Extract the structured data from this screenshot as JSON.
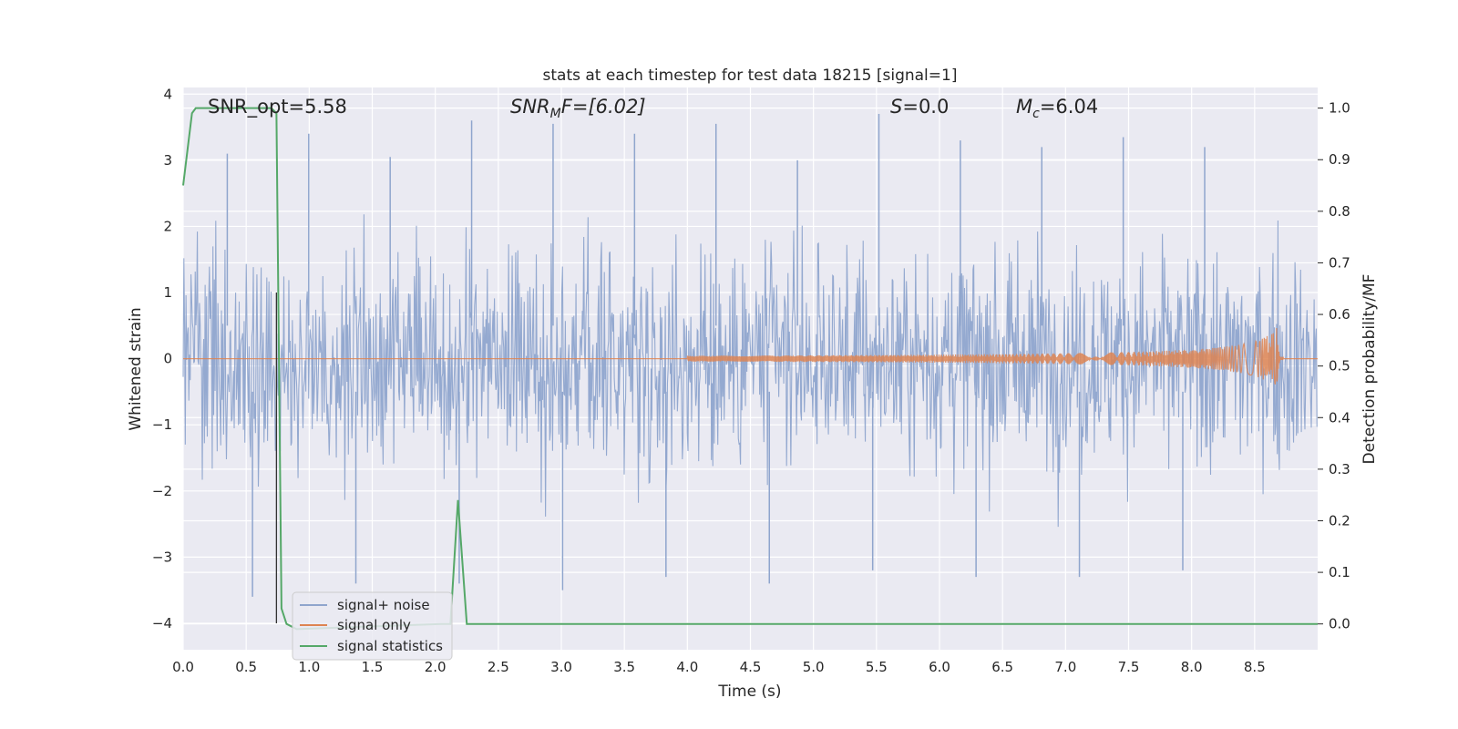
{
  "chart_data": {
    "type": "line",
    "title": "stats at each timestep for test data 18215 [signal=1]",
    "xlabel": "Time (s)",
    "ylabel_left": "Whitened strain",
    "ylabel_right": "Detection probability/MF",
    "xlim": [
      0.0,
      9.0
    ],
    "ylim_left": [
      -4.4,
      4.1
    ],
    "ylim_right": [
      -0.05,
      1.04
    ],
    "grid": true,
    "legend_placement": "lower-left",
    "x_ticks": [
      "0.0",
      "0.5",
      "1.0",
      "1.5",
      "2.0",
      "2.5",
      "3.0",
      "3.5",
      "4.0",
      "4.5",
      "5.0",
      "5.5",
      "6.0",
      "6.5",
      "7.0",
      "7.5",
      "8.0",
      "8.5"
    ],
    "y_ticks_left": [
      "4",
      "3",
      "2",
      "1",
      "0",
      "−1",
      "−2",
      "−3",
      "−4"
    ],
    "y_ticks_right": [
      "1.0",
      "0.9",
      "0.8",
      "0.7",
      "0.6",
      "0.5",
      "0.4",
      "0.3",
      "0.2",
      "0.1",
      "0.0"
    ],
    "annotations": {
      "snr_opt": "SNR_opt=5.58",
      "snr_mf_base": "SNR",
      "snr_mf_sub": "M",
      "snr_mf_rest": "F=[6.02]",
      "s_sym": "S",
      "s_rest": "=0.0",
      "mc_base": "M",
      "mc_sub": "c",
      "mc_rest": "=6.04"
    },
    "series": [
      {
        "name": "signal+ noise",
        "color": "#8fa5cd",
        "kind": "noise",
        "typical_abs": 1.5,
        "peak_values": [
          3.1,
          3.4,
          3.05,
          3.6,
          3.55,
          3.4,
          3.55,
          3.0,
          3.7,
          3.3,
          3.2,
          3.35,
          3.2
        ],
        "trough_values": [
          -3.6,
          -3.4,
          -3.4,
          -3.5,
          -3.3,
          -3.4,
          -3.2,
          -3.3,
          -3.3,
          -3.2
        ]
      },
      {
        "name": "signal only",
        "color": "#dd8452",
        "kind": "chirp",
        "start": 4.0,
        "merger": 8.68,
        "peak_amplitude": 0.48
      },
      {
        "name": "signal statistics",
        "color": "#55a868",
        "kind": "line",
        "x": [
          0.0,
          0.07,
          0.1,
          0.3,
          0.7,
          0.74,
          0.78,
          0.82,
          0.9,
          2.05,
          2.12,
          2.18,
          2.25,
          9.0
        ],
        "y": [
          0.85,
          0.99,
          1.0,
          1.0,
          1.0,
          0.99,
          0.03,
          0.0,
          -0.01,
          0.0,
          0.0,
          0.24,
          0.0,
          0.0
        ]
      }
    ],
    "marker_line": {
      "x": 0.74,
      "y_from": 1.0,
      "y_to": -4.0,
      "color": "#333333"
    }
  }
}
